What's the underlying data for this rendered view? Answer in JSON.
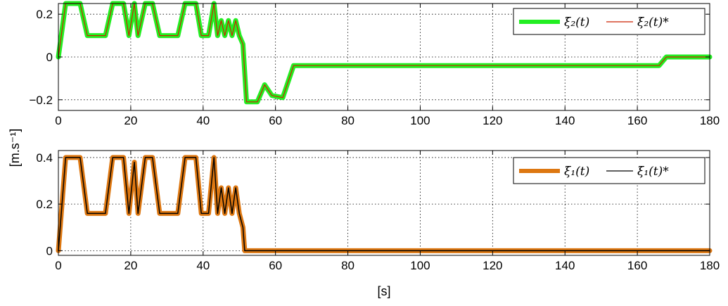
{
  "chart_data": [
    {
      "type": "line",
      "title": "",
      "xlabel": "",
      "ylabel": "",
      "xlim": [
        0,
        180
      ],
      "ylim": [
        -0.25,
        0.25
      ],
      "xticks": [
        "0",
        "20",
        "40",
        "60",
        "80",
        "100",
        "120",
        "140",
        "160",
        "180"
      ],
      "yticks": [
        "0.2",
        "0",
        "−0.2"
      ],
      "ytick_values": [
        0.2,
        0,
        -0.2
      ],
      "grid": true,
      "legend_position": "top-right",
      "series": [
        {
          "name": "ξ̇₂(t)",
          "color": "#22ee22",
          "points": [
            [
              0,
              0
            ],
            [
              2,
              0.25
            ],
            [
              6,
              0.25
            ],
            [
              8,
              0.1
            ],
            [
              13,
              0.1
            ],
            [
              15,
              0.25
            ],
            [
              18,
              0.25
            ],
            [
              19.5,
              0.1
            ],
            [
              21,
              0.25
            ],
            [
              22,
              0.1
            ],
            [
              24,
              0.25
            ],
            [
              26,
              0.25
            ],
            [
              28,
              0.1
            ],
            [
              33,
              0.1
            ],
            [
              35,
              0.25
            ],
            [
              38,
              0.25
            ],
            [
              39.5,
              0.1
            ],
            [
              41.5,
              0.1
            ],
            [
              43,
              0.25
            ],
            [
              44,
              0.1
            ],
            [
              45,
              0.17
            ],
            [
              46,
              0.1
            ],
            [
              47,
              0.17
            ],
            [
              48,
              0.1
            ],
            [
              49,
              0.17
            ],
            [
              50,
              0.1
            ],
            [
              51,
              0.06
            ],
            [
              52,
              -0.21
            ],
            [
              55,
              -0.21
            ],
            [
              57,
              -0.13
            ],
            [
              59,
              -0.18
            ],
            [
              62,
              -0.19
            ],
            [
              65,
              -0.04
            ],
            [
              166,
              -0.04
            ],
            [
              168,
              0
            ],
            [
              180,
              0
            ]
          ]
        },
        {
          "name": "ξ̇₂(t)*",
          "color": "#cc2200",
          "points": [
            [
              0,
              0
            ],
            [
              2,
              0.25
            ],
            [
              6,
              0.25
            ],
            [
              8,
              0.1
            ],
            [
              13,
              0.1
            ],
            [
              15,
              0.25
            ],
            [
              18,
              0.25
            ],
            [
              19.5,
              0.1
            ],
            [
              21,
              0.25
            ],
            [
              22,
              0.1
            ],
            [
              24,
              0.25
            ],
            [
              26,
              0.25
            ],
            [
              28,
              0.1
            ],
            [
              33,
              0.1
            ],
            [
              35,
              0.25
            ],
            [
              38,
              0.25
            ],
            [
              39.5,
              0.1
            ],
            [
              41.5,
              0.1
            ],
            [
              43,
              0.25
            ],
            [
              44,
              0.1
            ],
            [
              45,
              0.17
            ],
            [
              46,
              0.1
            ],
            [
              47,
              0.17
            ],
            [
              48,
              0.1
            ],
            [
              49,
              0.17
            ],
            [
              50,
              0.1
            ],
            [
              51,
              0.06
            ],
            [
              52,
              -0.21
            ],
            [
              55,
              -0.21
            ],
            [
              57,
              -0.13
            ],
            [
              59,
              -0.18
            ],
            [
              62,
              -0.19
            ],
            [
              65,
              -0.04
            ],
            [
              166,
              -0.04
            ],
            [
              168,
              0
            ],
            [
              180,
              0
            ]
          ]
        }
      ]
    },
    {
      "type": "line",
      "title": "",
      "xlabel": "[s]",
      "ylabel": "[m.s⁻¹]",
      "xlim": [
        0,
        180
      ],
      "ylim": [
        -0.02,
        0.43
      ],
      "xticks": [
        "0",
        "20",
        "40",
        "60",
        "80",
        "100",
        "120",
        "140",
        "160",
        "180"
      ],
      "yticks": [
        "0.4",
        "0.2",
        "0"
      ],
      "ytick_values": [
        0.4,
        0.2,
        0
      ],
      "grid": true,
      "legend_position": "top-right",
      "series": [
        {
          "name": "ξ̇₁(t)",
          "color": "#dd7711",
          "points": [
            [
              0,
              0
            ],
            [
              2,
              0.4
            ],
            [
              6,
              0.4
            ],
            [
              8,
              0.16
            ],
            [
              13,
              0.16
            ],
            [
              15,
              0.4
            ],
            [
              18,
              0.4
            ],
            [
              19.5,
              0.16
            ],
            [
              21,
              0.38
            ],
            [
              22,
              0.16
            ],
            [
              24,
              0.4
            ],
            [
              26,
              0.4
            ],
            [
              28,
              0.16
            ],
            [
              33,
              0.16
            ],
            [
              35,
              0.4
            ],
            [
              38,
              0.4
            ],
            [
              39.5,
              0.16
            ],
            [
              41.5,
              0.16
            ],
            [
              43,
              0.4
            ],
            [
              44,
              0.16
            ],
            [
              45,
              0.27
            ],
            [
              46,
              0.16
            ],
            [
              47,
              0.27
            ],
            [
              48,
              0.16
            ],
            [
              49,
              0.27
            ],
            [
              50,
              0.16
            ],
            [
              51,
              0.1
            ],
            [
              51.5,
              0
            ],
            [
              180,
              0
            ]
          ]
        },
        {
          "name": "ξ̇₁(t)*",
          "color": "#000000",
          "points": [
            [
              0,
              0
            ],
            [
              2,
              0.4
            ],
            [
              6,
              0.4
            ],
            [
              8,
              0.16
            ],
            [
              13,
              0.16
            ],
            [
              15,
              0.4
            ],
            [
              18,
              0.4
            ],
            [
              19.5,
              0.16
            ],
            [
              21,
              0.38
            ],
            [
              22,
              0.16
            ],
            [
              24,
              0.4
            ],
            [
              26,
              0.4
            ],
            [
              28,
              0.16
            ],
            [
              33,
              0.16
            ],
            [
              35,
              0.4
            ],
            [
              38,
              0.4
            ],
            [
              39.5,
              0.16
            ],
            [
              41.5,
              0.16
            ],
            [
              43,
              0.4
            ],
            [
              44,
              0.16
            ],
            [
              45,
              0.27
            ],
            [
              46,
              0.16
            ],
            [
              47,
              0.27
            ],
            [
              48,
              0.16
            ],
            [
              49,
              0.27
            ],
            [
              50,
              0.16
            ],
            [
              51,
              0.1
            ],
            [
              51.5,
              0
            ],
            [
              180,
              0
            ]
          ]
        }
      ]
    }
  ]
}
